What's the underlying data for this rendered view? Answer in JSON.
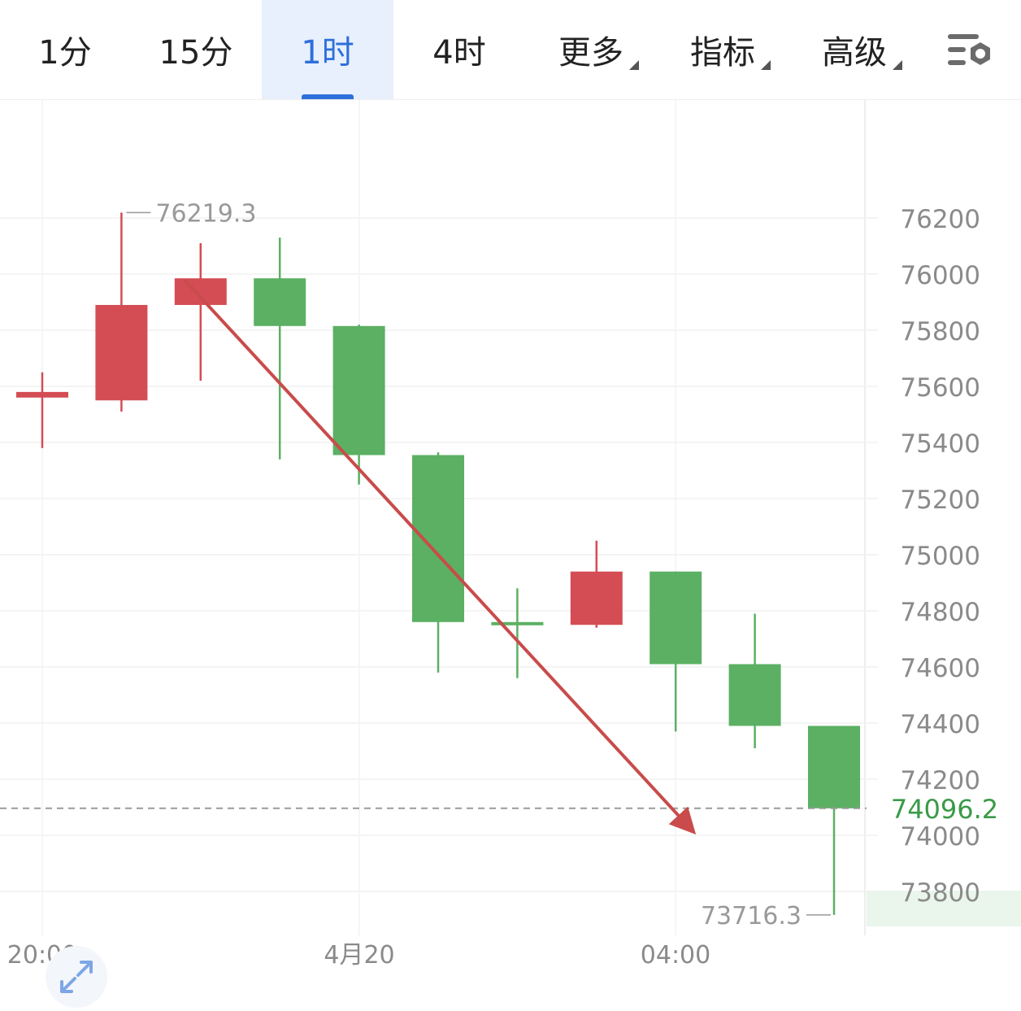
{
  "tabs": [
    {
      "label": "1分",
      "active": false
    },
    {
      "label": "15分",
      "active": false
    },
    {
      "label": "1时",
      "active": true
    },
    {
      "label": "4时",
      "active": false
    },
    {
      "label": "更多",
      "active": false,
      "dropdown": true
    },
    {
      "label": "指标",
      "active": false,
      "dropdown": true
    },
    {
      "label": "高级",
      "active": false,
      "dropdown": true
    }
  ],
  "icons": {
    "settings": "chart-settings-icon",
    "expand": "expand-icon"
  },
  "colors": {
    "up": "#d44d54",
    "down": "#5bb063",
    "accent": "#2f6fdc",
    "trend_arrow": "#c94b4b",
    "last_price": "#3a9a48"
  },
  "chart_data": {
    "type": "candlestick",
    "interval_label": "1时",
    "x_tick_labels": [
      "20:00",
      "4月20",
      "04:00"
    ],
    "y_ticks": [
      76200,
      76000,
      75800,
      75600,
      75400,
      75200,
      75000,
      74800,
      74600,
      74400,
      74200,
      74000,
      73800
    ],
    "ylim": [
      73700,
      76300
    ],
    "grid": true,
    "candles": [
      {
        "open": 75560,
        "high": 75650,
        "low": 75380,
        "close": 75580
      },
      {
        "open": 75550,
        "high": 76219.3,
        "low": 75510,
        "close": 75890
      },
      {
        "open": 75890,
        "high": 76110,
        "low": 75620,
        "close": 75985
      },
      {
        "open": 75985,
        "high": 76130,
        "low": 75340,
        "close": 75815
      },
      {
        "open": 75815,
        "high": 75820,
        "low": 75250,
        "close": 75355
      },
      {
        "open": 75355,
        "high": 75365,
        "low": 74580,
        "close": 74760
      },
      {
        "open": 74760,
        "high": 74880,
        "low": 74560,
        "close": 74750
      },
      {
        "open": 74750,
        "high": 75050,
        "low": 74740,
        "close": 74940
      },
      {
        "open": 74940,
        "high": 74940,
        "low": 74370,
        "close": 74610
      },
      {
        "open": 74610,
        "high": 74790,
        "low": 74310,
        "close": 74390
      },
      {
        "open": 74390,
        "high": 74390,
        "low": 73716.3,
        "close": 74096.2
      }
    ],
    "high_label": "76219.3",
    "low_label": "73716.3",
    "last_price": 74096.2,
    "last_price_label": "74096.2",
    "trend_arrow": {
      "from": [
        2,
        75980
      ],
      "to": [
        8.2,
        74020
      ]
    }
  }
}
